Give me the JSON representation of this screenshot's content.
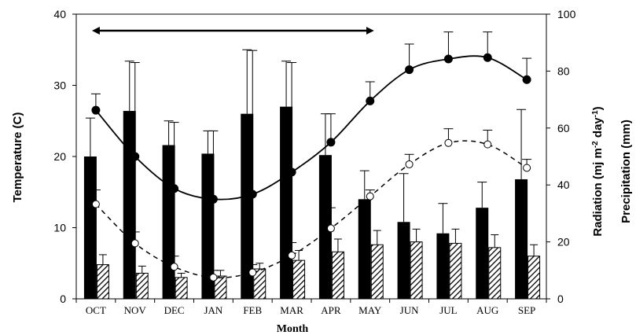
{
  "chart_data": {
    "type": "bar",
    "xlabel": "Month",
    "ylabel_left": "Temperature (C)",
    "ylabel_right_inner": "Radiation (mj m-2 day-1)",
    "ylabel_right_inner_parts": [
      "Radiation (mj m",
      "-2",
      " day",
      "-1",
      ")"
    ],
    "ylabel_right_outer": "Precipitation (mm)",
    "left_ylim": [
      0,
      40
    ],
    "left_ticks": [
      "0",
      "10",
      "20",
      "30",
      "40"
    ],
    "right_ylim": [
      0,
      100
    ],
    "right_ticks": [
      "0",
      "20",
      "40",
      "60",
      "80",
      "100"
    ],
    "categories": [
      "OCT",
      "NOV",
      "DEC",
      "JAN",
      "FEB",
      "MAR",
      "APR",
      "MAY",
      "JUN",
      "JUL",
      "AUG",
      "SEP"
    ],
    "bars_solid": {
      "axis": "right",
      "values": [
        50,
        66,
        54,
        51,
        65,
        67.5,
        50.5,
        35,
        27,
        23,
        32,
        42
      ],
      "errors": [
        13.5,
        17.5,
        8.5,
        8,
        22.5,
        16,
        14.5,
        10,
        17,
        10.5,
        9,
        24.5
      ]
    },
    "bars_hatched": {
      "axis": "right",
      "values": [
        12,
        9,
        7.5,
        8,
        10.5,
        13.5,
        16.5,
        19,
        20,
        19.5,
        18,
        15
      ],
      "errors": [
        3.5,
        2.5,
        1.5,
        2,
        2,
        3.5,
        4.5,
        5,
        4.5,
        5,
        4.5,
        4
      ]
    },
    "line_solid": {
      "axis": "left",
      "values": [
        26.5,
        20,
        15.5,
        14,
        14.7,
        17.8,
        22,
        27.8,
        32.2,
        33.7,
        33.9,
        30.8
      ],
      "errors": [
        2.3,
        13.2,
        9.3,
        9.6,
        20.2,
        15.4,
        4,
        2.7,
        3.6,
        3.8,
        3.6,
        3
      ]
    },
    "line_dashed": {
      "axis": "left",
      "values": [
        13.3,
        7.8,
        4.5,
        3,
        3.7,
        6.1,
        9.9,
        14.4,
        18.9,
        21.9,
        21.7,
        18.4
      ],
      "errors": [
        2,
        1.6,
        1.5,
        1,
        1.1,
        1.8,
        2.9,
        0.9,
        1.4,
        2,
        2,
        1.2
      ]
    },
    "arrow_span": [
      "OCT",
      "MAY"
    ],
    "colors": {
      "solid": "#000000",
      "hatch": "#000000",
      "background": "#ffffff"
    }
  }
}
